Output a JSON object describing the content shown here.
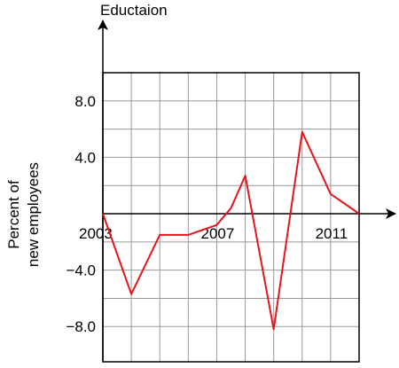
{
  "chart_data": {
    "type": "line",
    "title": "Eductaion",
    "ylabel_lines": [
      "Percent of",
      "new employees"
    ],
    "xlabel": "",
    "x": [
      2003,
      2004,
      2005,
      2006,
      2007,
      2007.5,
      2008,
      2009,
      2010,
      2011,
      2012
    ],
    "series": [
      {
        "values": [
          0,
          -5.7,
          -1.5,
          -1.5,
          -0.8,
          0.4,
          2.7,
          -8.2,
          5.8,
          1.4,
          0
        ]
      }
    ],
    "x_tick_labels": [
      {
        "value": 2003,
        "label": "2003"
      },
      {
        "value": 2007,
        "label": "2007"
      },
      {
        "value": 2011,
        "label": "2011"
      }
    ],
    "y_tick_labels": [
      {
        "value": 8,
        "label": "8.0"
      },
      {
        "value": 4,
        "label": "4.0"
      },
      {
        "value": -4,
        "label": "−4.0"
      },
      {
        "value": -8,
        "label": "−8.0"
      }
    ],
    "xlim": [
      2003,
      2012
    ],
    "ylim": [
      -10.5,
      10
    ],
    "y_gridlines": [
      10,
      8,
      6,
      4,
      2,
      -2,
      -4,
      -6,
      -8
    ],
    "grid": true,
    "line_color": "#e8141b",
    "grid_color": "#999999"
  }
}
